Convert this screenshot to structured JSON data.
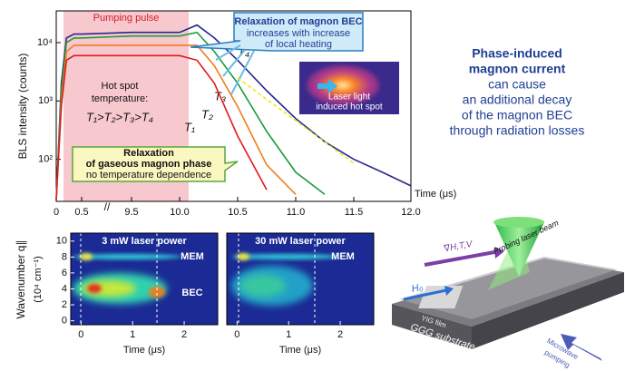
{
  "chart_data": [
    {
      "type": "line",
      "ylabel": "BLS intensity (counts)",
      "xlabel": "Time (μs)",
      "log_y": true,
      "x": [
        0,
        0.1,
        0.2,
        0.35,
        0.5,
        9.5,
        10.0,
        10.15,
        10.3,
        10.5,
        10.75,
        11.0,
        11.25,
        11.5,
        11.75,
        12.0
      ],
      "series": [
        {
          "name": "T₄",
          "color": "#27278f",
          "values": [
            20,
            2000,
            12000,
            14000,
            14000,
            15000,
            15000,
            20000,
            12000,
            5000,
            1500,
            500,
            200,
            100,
            60,
            35
          ]
        },
        {
          "name": "T₃",
          "color": "#1f9a3a",
          "values": [
            20,
            1500,
            10000,
            12000,
            12000,
            13000,
            13000,
            15000,
            7000,
            2000,
            300,
            60,
            25,
            null,
            null,
            null
          ]
        },
        {
          "name": "T₂",
          "color": "#f07d1a",
          "values": [
            20,
            1000,
            7000,
            9000,
            9000,
            9000,
            9000,
            9000,
            4000,
            800,
            80,
            25,
            null,
            null,
            null,
            null
          ]
        },
        {
          "name": "T₁",
          "color": "#e01b1b",
          "values": [
            20,
            800,
            5000,
            6000,
            6000,
            6000,
            6000,
            5000,
            2000,
            250,
            30,
            null,
            null,
            null,
            null,
            null
          ]
        }
      ],
      "xticks": [
        0,
        0.5,
        9.5,
        {
          "value": 10,
          "label": "10.0"
        },
        10.5,
        {
          "value": 11,
          "label": "11.0"
        },
        11.5,
        {
          "value": 12,
          "label": "12.0"
        }
      ],
      "ylim": [
        19,
        35000
      ],
      "yticks": [
        {
          "value": 100,
          "label": "10²"
        },
        {
          "value": 1000,
          "label": "10³"
        },
        {
          "value": 10000,
          "label": "10⁴"
        }
      ],
      "annotations": [
        "Pumping pulse",
        "Hot spot",
        "temperature:",
        "T₁>T₂>T₃>T₄",
        "Relaxation of magnon BEC",
        "increases with increase",
        "of local heating",
        "Laser light",
        "induced hot spot",
        "Relaxation",
        "of gaseous magnon phase",
        "no temperature dependence"
      ]
    },
    {
      "type": "heatmap",
      "title": "3 mW laser power",
      "labels": [
        "MEM",
        "BEC"
      ],
      "xlabel": "Time (μs)",
      "ylabel": [
        "Wavenumber q∥",
        "(10⁴ cm⁻¹)"
      ],
      "xlim": [
        -0.2,
        2.65
      ],
      "xticks": [
        0,
        1,
        2
      ],
      "ylim": [
        -0.5,
        11
      ],
      "yticks": [
        0,
        2,
        4,
        6,
        8,
        10
      ]
    },
    {
      "type": "heatmap",
      "title": "30 mW laser power",
      "labels": [
        "MEM"
      ],
      "xlabel": "Time (μs)",
      "xlim": [
        -0.2,
        2.65
      ],
      "xticks": [
        0,
        1,
        2
      ],
      "ylim": [
        -0.5,
        11
      ]
    }
  ],
  "note": {
    "title": [
      "Phase-induced",
      "magnon current"
    ],
    "body": [
      "can cause",
      "an additional decay",
      "of the magnon BEC",
      "through radiation losses"
    ]
  },
  "diagram": {
    "labels": [
      "Probing laser beam",
      "∇H,T,V",
      "H₀",
      "YIG film",
      "GGG substrate",
      "Microwave",
      "pumping"
    ]
  }
}
